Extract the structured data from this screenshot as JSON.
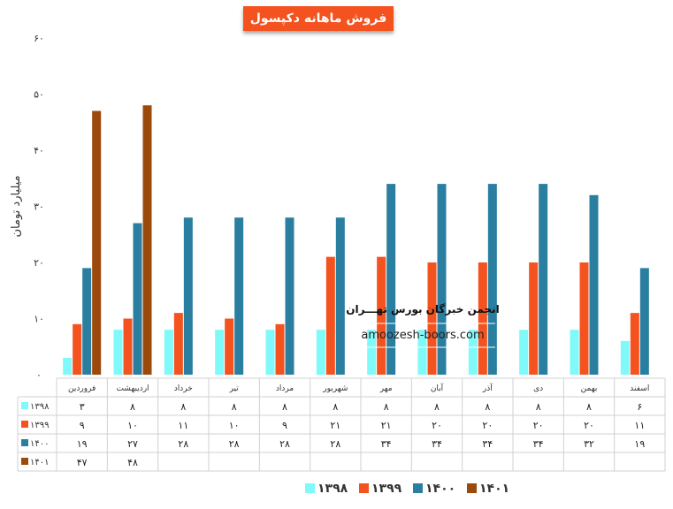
{
  "chart_data": {
    "type": "bar",
    "title": "فروش ماهانه دکپسول",
    "ylabel": "میلیارد تومان",
    "ylim": [
      0,
      60
    ],
    "yticks": [
      "۰",
      "۱۰",
      "۲۰",
      "۳۰",
      "۴۰",
      "۵۰",
      "۶۰"
    ],
    "ytick_values": [
      0,
      10,
      20,
      30,
      40,
      50,
      60
    ],
    "grid": false,
    "legend_position": "bottom",
    "categories": [
      "فروردین",
      "اردیبهشت",
      "خرداد",
      "تیر",
      "مرداد",
      "شهریور",
      "مهر",
      "آبان",
      "آذر",
      "دی",
      "بهمن",
      "اسفند"
    ],
    "series": [
      {
        "name": "۱۳۹۸",
        "color": "#7ff9f9",
        "values": [
          3,
          8,
          8,
          8,
          8,
          8,
          8,
          8,
          8,
          8,
          8,
          6
        ],
        "labels": [
          "۳",
          "۸",
          "۸",
          "۸",
          "۸",
          "۸",
          "۸",
          "۸",
          "۸",
          "۸",
          "۸",
          "۶"
        ]
      },
      {
        "name": "۱۳۹۹",
        "color": "#f4521e",
        "values": [
          9,
          10,
          11,
          10,
          9,
          21,
          21,
          20,
          20,
          20,
          20,
          11
        ],
        "labels": [
          "۹",
          "۱۰",
          "۱۱",
          "۱۰",
          "۹",
          "۲۱",
          "۲۱",
          "۲۰",
          "۲۰",
          "۲۰",
          "۲۰",
          "۱۱"
        ]
      },
      {
        "name": "۱۴۰۰",
        "color": "#2a7fa1",
        "values": [
          19,
          27,
          28,
          28,
          28,
          28,
          34,
          34,
          34,
          34,
          32,
          19
        ],
        "labels": [
          "۱۹",
          "۲۷",
          "۲۸",
          "۲۸",
          "۲۸",
          "۲۸",
          "۳۴",
          "۳۴",
          "۳۴",
          "۳۴",
          "۳۲",
          "۱۹"
        ]
      },
      {
        "name": "۱۴۰۱",
        "color": "#9c4a0c",
        "values": [
          47,
          48,
          null,
          null,
          null,
          null,
          null,
          null,
          null,
          null,
          null,
          null
        ],
        "labels": [
          "۴۷",
          "۴۸",
          "",
          "",
          "",
          "",
          "",
          "",
          "",
          "",
          "",
          ""
        ]
      }
    ]
  },
  "watermark": {
    "line1": "انجمن خبرگان بورس تهـــران",
    "line2": "amoozesh-boors.com"
  }
}
